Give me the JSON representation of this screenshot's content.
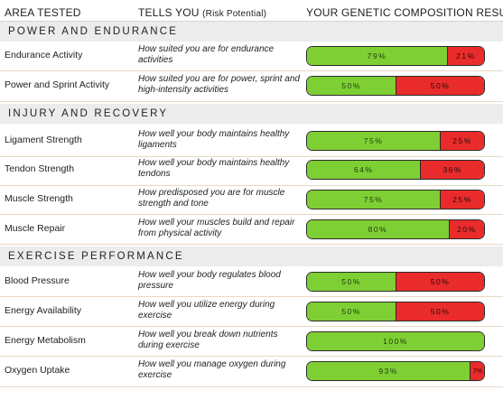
{
  "header": {
    "col1": "AREA TESTED",
    "col2": "TELLS YOU",
    "col2_sub": "(Risk Potential)",
    "col3": "YOUR GENETIC COMPOSITION RESULTS"
  },
  "sections": [
    {
      "title": "POWER AND ENDURANCE",
      "rows": [
        {
          "area": "Endurance Activity",
          "tells": "How suited you are for endurance activities",
          "green": "79%",
          "red": "21%"
        },
        {
          "area": "Power and Sprint Activity",
          "tells": "How suited you are for power, sprint and high-intensity activities",
          "green": "50%",
          "red": "50%"
        }
      ]
    },
    {
      "title": "INJURY AND RECOVERY",
      "rows": [
        {
          "area": "Ligament Strength",
          "tells": "How well your body maintains healthy ligaments",
          "green": "75%",
          "red": "25%"
        },
        {
          "area": "Tendon Strength",
          "tells": "How well your body maintains healthy tendons",
          "green": "64%",
          "red": "36%"
        },
        {
          "area": "Muscle Strength",
          "tells": "How predisposed you are for muscle strength and tone",
          "green": "75%",
          "red": "25%"
        },
        {
          "area": "Muscle Repair",
          "tells": "How well your muscles build and repair from physical activity",
          "green": "80%",
          "red": "20%"
        }
      ]
    },
    {
      "title": "EXERCISE PERFORMANCE",
      "rows": [
        {
          "area": "Blood Pressure",
          "tells": "How well your body regulates blood pressure",
          "green": "50%",
          "red": "50%"
        },
        {
          "area": "Energy Availability",
          "tells": "How well you utilize energy during exercise",
          "green": "50%",
          "red": "50%"
        },
        {
          "area": "Energy Metabolism",
          "tells": "How well you break down nutrients during exercise",
          "green": "100%",
          "red": ""
        },
        {
          "area": "Oxygen Uptake",
          "tells": "How well you manage oxygen during exercise",
          "green": "93%",
          "red": "7%"
        }
      ]
    }
  ],
  "colors": {
    "green": "#7ecf33",
    "red": "#ea2b2b",
    "section_bg": "#ececec"
  }
}
